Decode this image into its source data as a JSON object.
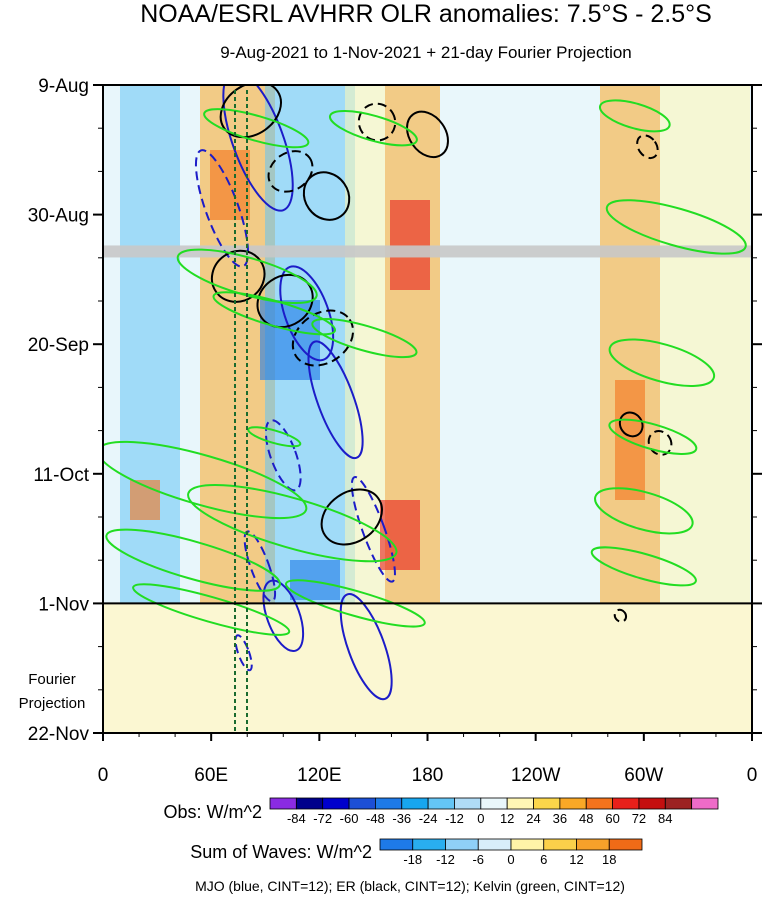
{
  "chart_data": {
    "type": "heatmap",
    "title": "NOAA/ESRL AVHRR OLR anomalies: 7.5°S - 2.5°S",
    "subtitle": "9-Aug-2021 to 1-Nov-2021 + 21-day Fourier Projection",
    "x_ticks": [
      "0",
      "60E",
      "120E",
      "180",
      "120W",
      "60W",
      "0"
    ],
    "x_tick_lons": [
      0,
      60,
      120,
      180,
      240,
      300,
      360
    ],
    "xlim": [
      0,
      360
    ],
    "y_ticks": [
      "9-Aug",
      "30-Aug",
      "20-Sep",
      "11-Oct",
      "1-Nov",
      "22-Nov"
    ],
    "y_tick_days": [
      0,
      21,
      42,
      63,
      84,
      105
    ],
    "ylim": [
      0,
      105
    ],
    "projection_start_day": 84,
    "projection_label_line1": "Fourier",
    "projection_label_line2": "Projection",
    "obs_colorbar": {
      "label": "Obs: W/m^2",
      "levels": [
        "-84",
        "-72",
        "-60",
        "-48",
        "-36",
        "-24",
        "-12",
        "0",
        "12",
        "24",
        "36",
        "48",
        "60",
        "72",
        "84"
      ],
      "colors": [
        "#8a2be2",
        "#00008b",
        "#0000cd",
        "#1c4fd6",
        "#1e7ae8",
        "#17a6ef",
        "#64c5f5",
        "#b0dcf7",
        "#e9f7fb",
        "#fff7b5",
        "#fbd64a",
        "#f9a826",
        "#f4731c",
        "#e8201a",
        "#c40f0f",
        "#9c2222",
        "#ee6bc8"
      ]
    },
    "waves_colorbar": {
      "label": "Sum of Waves: W/m^2",
      "levels": [
        "-18",
        "-12",
        "-6",
        "0",
        "6",
        "12",
        "18"
      ],
      "colors": [
        "#1e7ae8",
        "#29aef0",
        "#8fd0f7",
        "#d8eefa",
        "#fff3a8",
        "#fbd04a",
        "#f7a12a",
        "#f06b17"
      ]
    },
    "footer": "MJO (blue, CINT=12); ER (black, CINT=12); Kelvin (green, CINT=12)",
    "series": [
      {
        "name": "MJO",
        "color": "#1c1cc8",
        "cint": 12
      },
      {
        "name": "ER",
        "color": "#000000",
        "cint": 12
      },
      {
        "name": "Kelvin",
        "color": "#22dd22",
        "cint": 12
      }
    ],
    "mjo_features": [
      {
        "lon": 86,
        "day": 9,
        "dlon": 14,
        "dday": 12,
        "dashed": false
      },
      {
        "lon": 66,
        "day": 20,
        "dlon": 9,
        "dday": 10,
        "dashed": true
      },
      {
        "lon": 113,
        "day": 37,
        "dlon": 12,
        "dday": 8,
        "dashed": false
      },
      {
        "lon": 129,
        "day": 51,
        "dlon": 10,
        "dday": 10,
        "dashed": false
      },
      {
        "lon": 100,
        "day": 60,
        "dlon": 7,
        "dday": 6,
        "dashed": true
      },
      {
        "lon": 150,
        "day": 72,
        "dlon": 6,
        "dday": 9,
        "dashed": true
      },
      {
        "lon": 87,
        "day": 78,
        "dlon": 5,
        "dday": 6,
        "dashed": true
      },
      {
        "lon": 100,
        "day": 86,
        "dlon": 9,
        "dday": 6,
        "dashed": false
      },
      {
        "lon": 146,
        "day": 91,
        "dlon": 10,
        "dday": 9,
        "dashed": false
      },
      {
        "lon": 78,
        "day": 92,
        "dlon": 3,
        "dday": 3,
        "dashed": true
      }
    ],
    "er_features": [
      {
        "lon": 82,
        "day": 4,
        "dlon": 18,
        "dday": 4,
        "dashed": false
      },
      {
        "lon": 104,
        "day": 14,
        "dlon": 13,
        "dday": 3,
        "dashed": true
      },
      {
        "lon": 152,
        "day": 6,
        "dlon": 10,
        "dday": 3,
        "dashed": true
      },
      {
        "lon": 180,
        "day": 8,
        "dlon": 10,
        "dday": 4,
        "dashed": false
      },
      {
        "lon": 124,
        "day": 18,
        "dlon": 12,
        "dday": 4,
        "dashed": false
      },
      {
        "lon": 75,
        "day": 31,
        "dlon": 15,
        "dday": 4,
        "dashed": false
      },
      {
        "lon": 101,
        "day": 35,
        "dlon": 16,
        "dday": 4,
        "dashed": false
      },
      {
        "lon": 122,
        "day": 41,
        "dlon": 18,
        "dday": 4,
        "dashed": true
      },
      {
        "lon": 138,
        "day": 70,
        "dlon": 18,
        "dday": 4,
        "dashed": false
      },
      {
        "lon": 293,
        "day": 55,
        "dlon": 6,
        "dday": 2,
        "dashed": false
      },
      {
        "lon": 309,
        "day": 58,
        "dlon": 6,
        "dday": 2,
        "dashed": true
      },
      {
        "lon": 302,
        "day": 10,
        "dlon": 5,
        "dday": 2,
        "dashed": true
      },
      {
        "lon": 287,
        "day": 86,
        "dlon": 3,
        "dday": 1,
        "dashed": true
      }
    ],
    "kelvin_features": [
      {
        "lon": 55,
        "day": 64,
        "dlon": 60,
        "dday": 4
      },
      {
        "lon": 105,
        "day": 71,
        "dlon": 60,
        "dday": 4
      },
      {
        "lon": 50,
        "day": 77,
        "dlon": 50,
        "dday": 3
      },
      {
        "lon": 60,
        "day": 85,
        "dlon": 45,
        "dday": 2
      },
      {
        "lon": 140,
        "day": 84,
        "dlon": 40,
        "dday": 2
      },
      {
        "lon": 80,
        "day": 31,
        "dlon": 40,
        "dday": 3
      },
      {
        "lon": 95,
        "day": 37,
        "dlon": 35,
        "dday": 2
      },
      {
        "lon": 145,
        "day": 41,
        "dlon": 30,
        "dday": 2
      },
      {
        "lon": 85,
        "day": 7,
        "dlon": 30,
        "dday": 2
      },
      {
        "lon": 150,
        "day": 7,
        "dlon": 25,
        "dday": 2
      },
      {
        "lon": 318,
        "day": 23,
        "dlon": 40,
        "dday": 3
      },
      {
        "lon": 310,
        "day": 45,
        "dlon": 30,
        "dday": 3
      },
      {
        "lon": 305,
        "day": 57,
        "dlon": 25,
        "dday": 2
      },
      {
        "lon": 300,
        "day": 69,
        "dlon": 28,
        "dday": 3
      },
      {
        "lon": 300,
        "day": 78,
        "dlon": 30,
        "dday": 2
      },
      {
        "lon": 295,
        "day": 5,
        "dlon": 20,
        "dday": 2
      },
      {
        "lon": 95,
        "day": 57,
        "dlon": 15,
        "dday": 1
      }
    ],
    "grid": false
  }
}
